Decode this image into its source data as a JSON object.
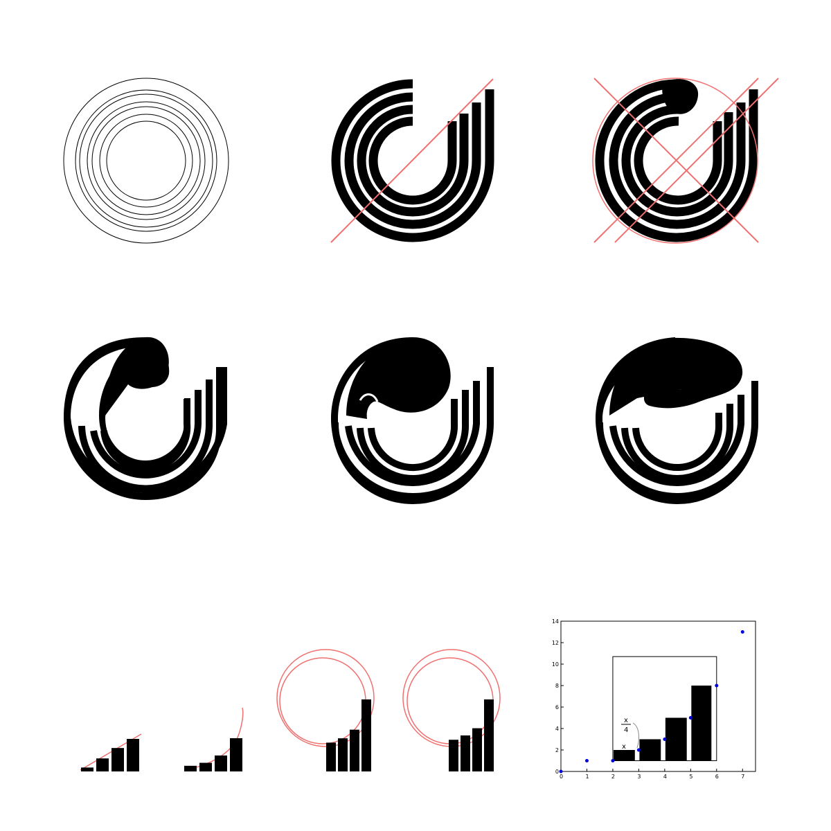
{
  "colors": {
    "ink": "#000000",
    "guide": "#f07070",
    "point": "#0000dd",
    "background": "#ffffff"
  },
  "panels": [
    {
      "id": "concentric-rings",
      "description_icon": "rings-icon"
    },
    {
      "id": "logo-with-diagonal-guide",
      "description_icon": "logo-icon"
    },
    {
      "id": "logo-with-cross-guides",
      "description_icon": "logo-icon"
    },
    {
      "id": "logo-variant-small-head",
      "description_icon": "logo-icon"
    },
    {
      "id": "logo-variant-round-head",
      "description_icon": "logo-icon"
    },
    {
      "id": "logo-variant-wave-head",
      "description_icon": "logo-icon"
    },
    {
      "id": "bars-with-line",
      "description_icon": "bars-icon"
    },
    {
      "id": "bars-with-curve",
      "description_icon": "bars-icon"
    },
    {
      "id": "bars-with-circles-a",
      "description_icon": "bars-icon"
    },
    {
      "id": "bars-with-circles-b",
      "description_icon": "bars-icon"
    }
  ],
  "bar_series": {
    "bars-with-line": [
      0.12,
      0.4,
      0.72,
      1.0
    ],
    "bars-with-curve": [
      0.17,
      0.26,
      0.48,
      1.0
    ],
    "bars-with-circles-a": [
      0.4,
      0.46,
      0.58,
      1.0
    ],
    "bars-with-circles-b": [
      0.44,
      0.5,
      0.6,
      1.0
    ]
  },
  "chart_data": {
    "type": "bar",
    "categories": [
      "2",
      "3",
      "4",
      "5"
    ],
    "values": [
      2,
      3,
      5,
      8
    ],
    "scatter": {
      "x": [
        0,
        1,
        2,
        3,
        4,
        5,
        6,
        7
      ],
      "y": [
        0,
        1,
        1,
        2,
        3,
        5,
        8,
        13
      ]
    },
    "xlim": [
      0,
      7.5
    ],
    "ylim": [
      0,
      14
    ],
    "xticks": [
      "0",
      "1",
      "2",
      "3",
      "4",
      "5",
      "6",
      "7"
    ],
    "yticks": [
      "0",
      "2",
      "4",
      "6",
      "8",
      "10",
      "12",
      "14"
    ],
    "annotations": {
      "bar_label": "x",
      "fraction_numerator": "x",
      "fraction_denominator": "4"
    },
    "box_top": 10.7,
    "grid": false
  }
}
